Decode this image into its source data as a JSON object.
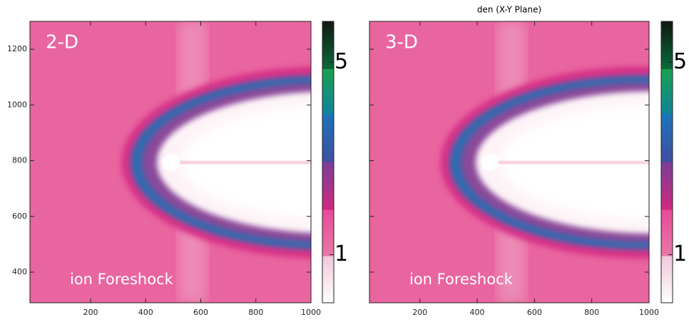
{
  "chart_data": [
    {
      "type": "heatmap",
      "label": "2-D",
      "annotation": "ion Foreshock",
      "xlim": [
        -20,
        1000
      ],
      "xticks": [
        200,
        400,
        600,
        800,
        1000
      ],
      "ylim": [
        290,
        1300
      ],
      "yticks": [
        400,
        600,
        800,
        1000,
        1200
      ],
      "ytick_labels": true,
      "clim": [
        0,
        5.85
      ],
      "cticks": [
        1,
        5
      ]
    },
    {
      "type": "heatmap",
      "title": "den  (X-Y Plane)",
      "label": "3-D",
      "annotation": "ion Foreshock",
      "xlim": [
        24,
        1000
      ],
      "xticks": [
        200,
        400,
        600,
        800,
        1000
      ],
      "ylim": [
        290,
        1300
      ],
      "yticks": [
        400,
        600,
        800,
        1000,
        1200
      ],
      "ytick_labels": false,
      "clim": [
        0,
        5.85
      ],
      "cticks": [
        1,
        5
      ]
    }
  ]
}
